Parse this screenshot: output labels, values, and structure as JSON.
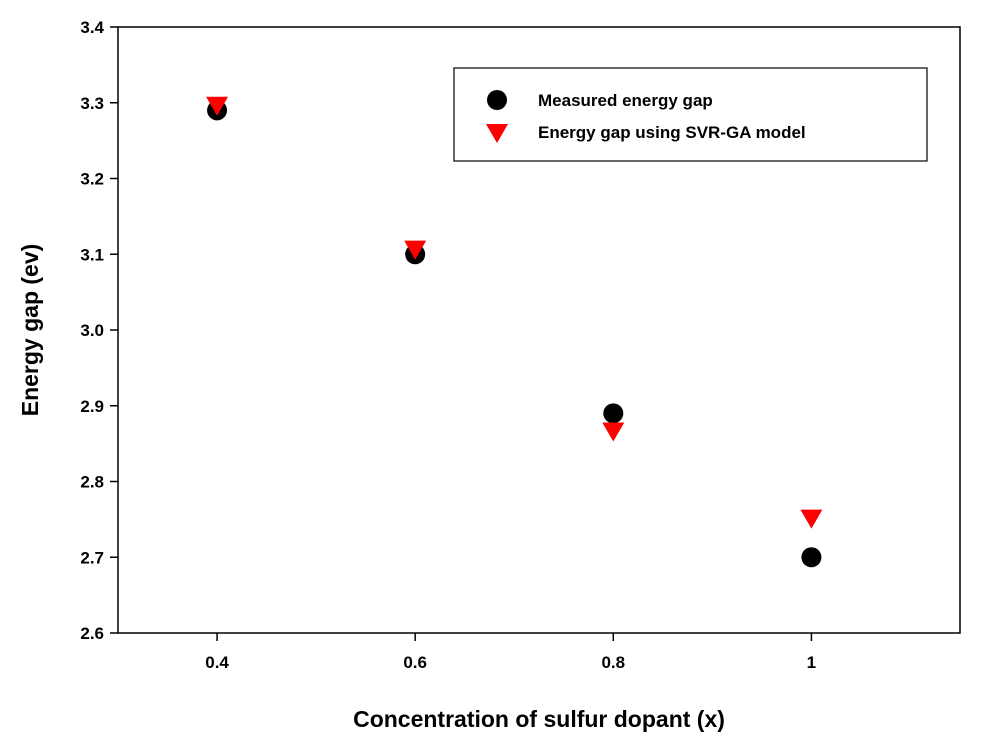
{
  "chart_data": {
    "type": "scatter",
    "title": "",
    "xlabel": "Concentration of sulfur dopant (x)",
    "ylabel": "Energy gap (ev)",
    "xlim": [
      0.3,
      1.15
    ],
    "ylim": [
      2.6,
      3.4
    ],
    "x_ticks": [
      0.4,
      0.6,
      0.8,
      1.0
    ],
    "x_tick_labels": [
      "0.4",
      "0.6",
      "0.8",
      "1"
    ],
    "y_ticks": [
      2.6,
      2.7,
      2.8,
      2.9,
      3.0,
      3.1,
      3.2,
      3.3,
      3.4
    ],
    "y_tick_labels": [
      "2.6",
      "2.7",
      "2.8",
      "2.9",
      "3.0",
      "3.1",
      "3.2",
      "3.3",
      "3.4"
    ],
    "grid": false,
    "legend_position": "top-right",
    "series": [
      {
        "name": "Measured energy gap",
        "marker": "circle",
        "color": "#000000",
        "x": [
          0.4,
          0.6,
          0.8,
          1.0
        ],
        "y": [
          3.29,
          3.1,
          2.89,
          2.7
        ]
      },
      {
        "name": "Energy gap using SVR-GA model",
        "marker": "triangle-down",
        "color": "#ff0000",
        "x": [
          0.4,
          0.6,
          0.8,
          1.0
        ],
        "y": [
          3.3,
          3.11,
          2.87,
          2.755
        ]
      }
    ]
  }
}
